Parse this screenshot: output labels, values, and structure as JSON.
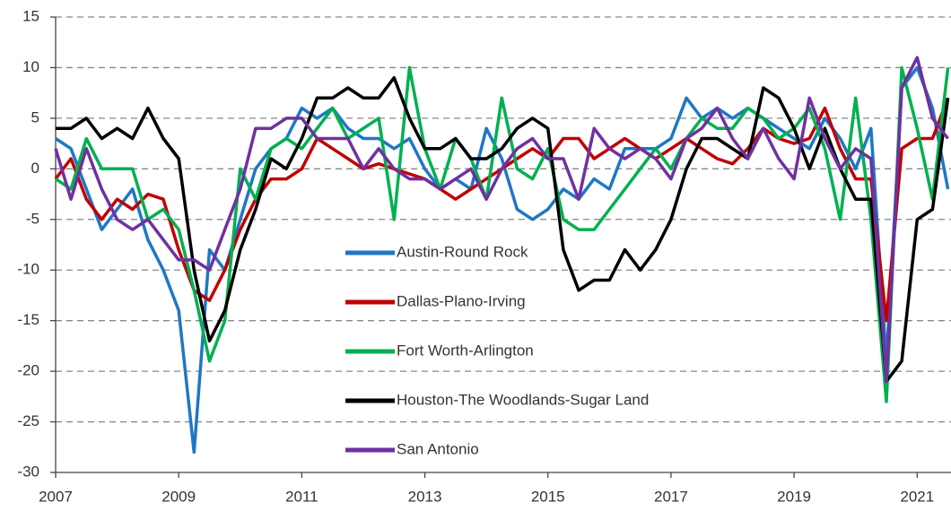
{
  "chart_data": {
    "type": "line",
    "x": [
      2007,
      2007.25,
      2007.5,
      2007.75,
      2008,
      2008.25,
      2008.5,
      2008.75,
      2009,
      2009.25,
      2009.5,
      2009.75,
      2010,
      2010.25,
      2010.5,
      2010.75,
      2011,
      2011.25,
      2011.5,
      2011.75,
      2012,
      2012.25,
      2012.5,
      2012.75,
      2013,
      2013.25,
      2013.5,
      2013.75,
      2014,
      2014.25,
      2014.5,
      2014.75,
      2015,
      2015.25,
      2015.5,
      2015.75,
      2016,
      2016.25,
      2016.5,
      2016.75,
      2017,
      2017.25,
      2017.5,
      2017.75,
      2018,
      2018.25,
      2018.5,
      2018.75,
      2019,
      2019.25,
      2019.5,
      2019.75,
      2020,
      2020.25,
      2020.5,
      2020.75,
      2021,
      2021.25,
      2021.5
    ],
    "series": [
      {
        "name": "Austin-Round Rock",
        "color": "#1f77c4",
        "values": [
          3,
          2,
          -2,
          -6,
          -4,
          -2,
          -7,
          -10,
          -14,
          -28,
          -8,
          -10,
          -5,
          0,
          2,
          3,
          6,
          5,
          6,
          4,
          3,
          3,
          2,
          3,
          0,
          -2,
          -1,
          -2,
          4,
          1,
          -4,
          -5,
          -4,
          -2,
          -3,
          -1,
          -2,
          2,
          2,
          2,
          3,
          7,
          5,
          6,
          5,
          6,
          5,
          4,
          3,
          2,
          5,
          3,
          0,
          4,
          -19,
          8,
          10,
          6,
          -2
        ]
      },
      {
        "name": "Dallas-Plano-Irving",
        "color": "#c00000",
        "values": [
          -1,
          1,
          -3,
          -5,
          -3,
          -4,
          -2.5,
          -3,
          -8,
          -12,
          -13,
          -10,
          -6,
          -3,
          -1,
          -1,
          0,
          3,
          2,
          1,
          0,
          0.5,
          0,
          -0.5,
          -1,
          -2,
          -3,
          -2,
          -1,
          0,
          1,
          2,
          1,
          3,
          3,
          1,
          2,
          3,
          2,
          1,
          2,
          3,
          2,
          1,
          0.5,
          2,
          4,
          3,
          2.5,
          3,
          6,
          2,
          -1,
          -1,
          -15,
          2,
          3,
          3,
          7
        ]
      },
      {
        "name": "Fort Worth-Arlington",
        "color": "#00b050",
        "values": [
          -1,
          -2,
          3,
          0,
          0,
          0,
          -5,
          -4,
          -6,
          -12,
          -19,
          -15,
          0,
          -3,
          2,
          3,
          2,
          4,
          6,
          3,
          4,
          5,
          -5,
          10,
          2,
          -2,
          3,
          1,
          -3,
          7,
          0,
          -1,
          2,
          -5,
          -6,
          -6,
          -4,
          -2,
          0,
          2,
          0,
          3,
          5,
          4,
          4,
          6,
          5,
          3,
          4,
          6,
          2,
          -5,
          7,
          -5,
          -23,
          10,
          4,
          -3,
          10
        ]
      },
      {
        "name": "Houston-The Woodlands-Sugar Land",
        "color": "#000000",
        "values": [
          4,
          4,
          5,
          3,
          4,
          3,
          6,
          3,
          1,
          -10,
          -17,
          -14,
          -8,
          -4,
          1,
          0,
          3,
          7,
          7,
          8,
          7,
          7,
          9,
          5,
          2,
          2,
          3,
          1,
          1,
          2,
          4,
          5,
          4,
          -8,
          -12,
          -11,
          -11,
          -8,
          -10,
          -8,
          -5,
          0,
          3,
          3,
          2,
          1,
          8,
          7,
          4,
          0,
          4,
          0,
          -3,
          -3,
          -21,
          -19,
          -5,
          -4,
          7
        ]
      },
      {
        "name": "San Antonio",
        "color": "#7030a0",
        "values": [
          2,
          -3,
          2,
          -2,
          -5,
          -6,
          -5,
          -7,
          -9,
          -9,
          -10,
          -6,
          -2,
          4,
          4,
          5,
          5,
          3,
          3,
          3,
          0,
          2,
          0,
          -1,
          -1,
          -2,
          -1,
          0,
          -3,
          0,
          2,
          3,
          1,
          1,
          -3,
          4,
          2,
          1,
          2,
          1,
          -1,
          3,
          4,
          6,
          3,
          1,
          4,
          1,
          -1,
          7,
          3,
          0,
          2,
          1,
          -21,
          8,
          11,
          5,
          3
        ]
      }
    ],
    "xlim": [
      2007,
      2021.55
    ],
    "xticks": [
      2007,
      2009,
      2011,
      2013,
      2015,
      2017,
      2019,
      2021
    ],
    "ylim": [
      -30,
      15
    ],
    "yticks": [
      -30,
      -25,
      -20,
      -15,
      -10,
      -5,
      0,
      5,
      10,
      15
    ],
    "grid": true,
    "legend": "center"
  }
}
